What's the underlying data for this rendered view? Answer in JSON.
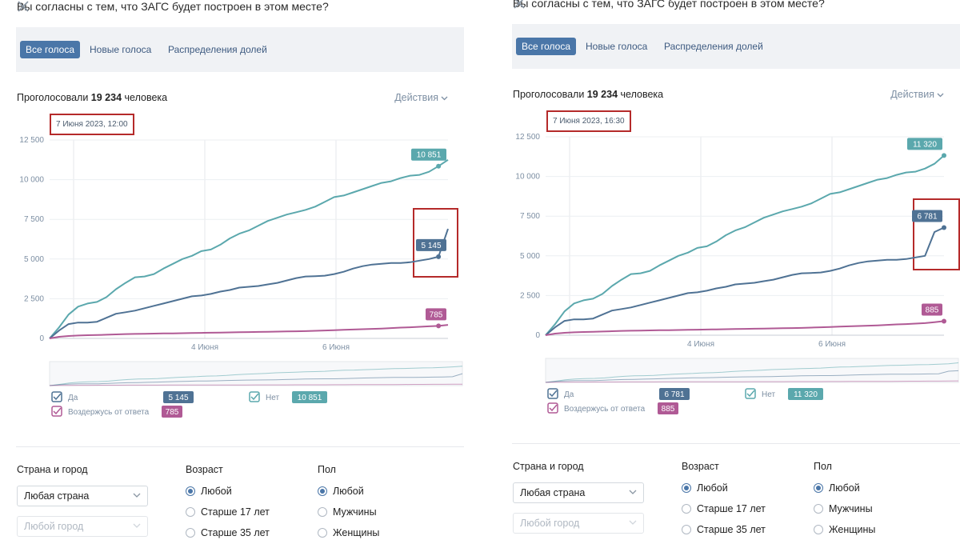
{
  "panels": [
    {
      "question": "Вы согласны с тем, что ЗАГС будет построен в этом месте?",
      "tabs": [
        "Все голоса",
        "Новые голоса",
        "Распределения долей"
      ],
      "active_tab": 0,
      "voted_prefix": "Проголосовали",
      "voted_count": "19 234",
      "voted_suffix": "человека",
      "actions_label": "Действия",
      "date_label": "7 Июня 2023, 12:00",
      "filters": {
        "country_title": "Страна и город",
        "country_value": "Любая страна",
        "city_placeholder": "Любой город",
        "age_title": "Возраст",
        "age_options": [
          "Любой",
          "Старше 17 лет",
          "Старше 35 лет"
        ],
        "age_selected": 0,
        "sex_title": "Пол",
        "sex_options": [
          "Любой",
          "Мужчины",
          "Женщины"
        ],
        "sex_selected": 0
      }
    },
    {
      "question": "Вы согласны с тем, что ЗАГС будет построен в этом месте?",
      "tabs": [
        "Все голоса",
        "Новые голоса",
        "Распределения долей"
      ],
      "active_tab": 0,
      "voted_prefix": "Проголосовали",
      "voted_count": "19 234",
      "voted_suffix": "человека",
      "actions_label": "Действия",
      "date_label": "7 Июня 2023, 16:30",
      "filters": {
        "country_title": "Страна и город",
        "country_value": "Любая страна",
        "city_placeholder": "Любой город",
        "age_title": "Возраст",
        "age_options": [
          "Любой",
          "Старше 17 лет",
          "Старше 35 лет"
        ],
        "age_selected": 0,
        "sex_title": "Пол",
        "sex_options": [
          "Любой",
          "Мужчины",
          "Женщины"
        ],
        "sex_selected": 0
      }
    }
  ],
  "chart_data": [
    {
      "type": "line",
      "ylim": [
        0,
        12500
      ],
      "yticks": [
        0,
        2500,
        5000,
        7500,
        10000,
        12500
      ],
      "ytick_labels": [
        "0",
        "2 500",
        "5 000",
        "7 500",
        "10 000",
        "12 500"
      ],
      "xtick_labels": [
        "4 Июня",
        "6 Июня"
      ],
      "grid": true,
      "legend": "bottom",
      "series": [
        {
          "name": "Нет",
          "color": "#5ba8ad",
          "label": "10 851",
          "values": [
            0,
            700,
            1500,
            2000,
            2200,
            2300,
            2600,
            3100,
            3500,
            3850,
            3900,
            4050,
            4400,
            4700,
            5000,
            5200,
            5500,
            5600,
            5900,
            6300,
            6600,
            6800,
            7100,
            7400,
            7600,
            7800,
            7950,
            8100,
            8300,
            8600,
            8900,
            9000,
            9200,
            9400,
            9600,
            9800,
            9900,
            10100,
            10250,
            10300,
            10500,
            10851,
            11250
          ]
        },
        {
          "name": "Да",
          "color": "#4f7294",
          "label": "5 145",
          "values": [
            0,
            500,
            900,
            1000,
            1000,
            1050,
            1300,
            1550,
            1650,
            1750,
            1900,
            2050,
            2200,
            2350,
            2500,
            2650,
            2700,
            2800,
            2950,
            3050,
            3200,
            3250,
            3300,
            3400,
            3500,
            3650,
            3800,
            3900,
            3920,
            3950,
            4050,
            4200,
            4400,
            4550,
            4650,
            4700,
            4750,
            4750,
            4800,
            4900,
            5000,
            5145,
            6900
          ]
        },
        {
          "name": "Воздержусь от ответа",
          "color": "#b05a95",
          "label": "785",
          "values": [
            0,
            100,
            150,
            180,
            200,
            210,
            230,
            250,
            270,
            280,
            290,
            300,
            310,
            320,
            330,
            340,
            350,
            360,
            370,
            380,
            390,
            400,
            410,
            420,
            430,
            440,
            450,
            460,
            480,
            500,
            520,
            540,
            560,
            580,
            600,
            620,
            650,
            680,
            700,
            730,
            760,
            785,
            850
          ]
        }
      ]
    },
    {
      "type": "line",
      "ylim": [
        0,
        12500
      ],
      "yticks": [
        0,
        2500,
        5000,
        7500,
        10000,
        12500
      ],
      "ytick_labels": [
        "0",
        "2 500",
        "5 000",
        "7 500",
        "10 000",
        "12 500"
      ],
      "xtick_labels": [
        "4 Июня",
        "6 Июня"
      ],
      "grid": true,
      "legend": "bottom",
      "series": [
        {
          "name": "Нет",
          "color": "#5ba8ad",
          "label": "11 320",
          "values": [
            0,
            700,
            1500,
            2000,
            2200,
            2300,
            2600,
            3100,
            3500,
            3850,
            3900,
            4050,
            4400,
            4700,
            5000,
            5200,
            5500,
            5600,
            5900,
            6300,
            6600,
            6800,
            7100,
            7400,
            7600,
            7800,
            7950,
            8100,
            8300,
            8600,
            8900,
            9000,
            9200,
            9400,
            9600,
            9800,
            9900,
            10100,
            10250,
            10300,
            10500,
            10800,
            11320
          ]
        },
        {
          "name": "Да",
          "color": "#4f7294",
          "label": "6 781",
          "values": [
            0,
            500,
            900,
            1000,
            1000,
            1050,
            1300,
            1550,
            1650,
            1750,
            1900,
            2050,
            2200,
            2350,
            2500,
            2650,
            2700,
            2800,
            2950,
            3050,
            3200,
            3250,
            3300,
            3400,
            3500,
            3650,
            3800,
            3900,
            3920,
            3950,
            4050,
            4200,
            4400,
            4550,
            4650,
            4700,
            4750,
            4750,
            4800,
            4900,
            5000,
            6500,
            6781
          ]
        },
        {
          "name": "Воздержусь от ответа",
          "color": "#b05a95",
          "label": "885",
          "values": [
            0,
            100,
            150,
            180,
            200,
            210,
            230,
            250,
            270,
            280,
            290,
            300,
            310,
            320,
            330,
            340,
            350,
            360,
            370,
            380,
            390,
            400,
            410,
            420,
            430,
            440,
            450,
            460,
            480,
            500,
            520,
            540,
            560,
            580,
            600,
            620,
            650,
            680,
            700,
            730,
            760,
            820,
            885
          ]
        }
      ]
    }
  ]
}
